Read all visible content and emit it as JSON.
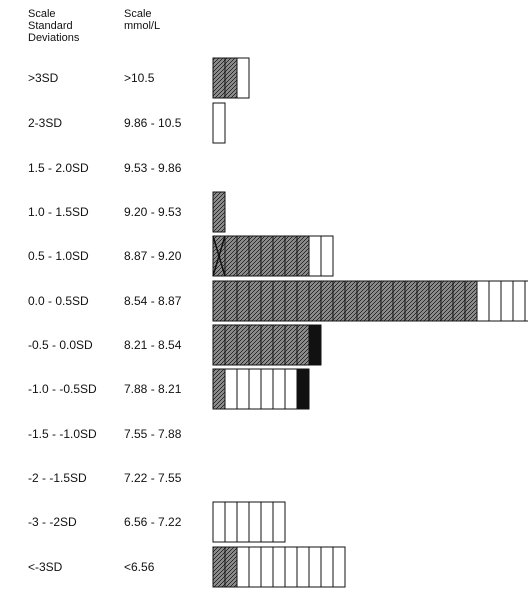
{
  "headers": {
    "sd": "Scale\nStandard\nDeviations",
    "mmol": "Scale\nmmol/L"
  },
  "chart_data": {
    "type": "bar",
    "orientation": "horizontal",
    "row_labels_sd": [
      ">3SD",
      "2-3SD",
      "1.5 - 2.0SD",
      "1.0 - 1.5SD",
      "0.5 - 1.0SD",
      "0.0 - 0.5SD",
      "-0.5 - 0.0SD",
      "-1.0 - -0.5SD",
      "-1.5 - -1.0SD",
      "-2 - -1.5SD",
      "-3 - -2SD",
      "<-3SD"
    ],
    "row_labels_mmol": [
      ">10.5",
      "9.86 - 10.5",
      "9.53 - 9.86",
      "9.20 - 9.53",
      "8.87 - 9.20",
      "8.54 - 8.87",
      "8.21 - 8.54",
      "7.88 - 8.21",
      "7.55 - 7.88",
      "7.22 - 7.55",
      "6.56 - 7.22",
      "<6.56"
    ],
    "counts": [
      3,
      1,
      0,
      1,
      10,
      27,
      9,
      8,
      0,
      0,
      6,
      11
    ],
    "cells": [
      [
        "shaded",
        "shaded",
        "empty"
      ],
      [
        "empty"
      ],
      [],
      [
        "shaded"
      ],
      [
        "x",
        "shaded",
        "shaded",
        "shaded",
        "shaded",
        "shaded",
        "shaded",
        "shaded",
        "empty",
        "empty"
      ],
      [
        "shaded",
        "shaded",
        "shaded",
        "shaded",
        "shaded",
        "shaded",
        "shaded",
        "shaded",
        "shaded",
        "shaded",
        "shaded",
        "shaded",
        "shaded",
        "shaded",
        "shaded",
        "shaded",
        "shaded",
        "shaded",
        "shaded",
        "shaded",
        "shaded",
        "shaded",
        "empty",
        "empty",
        "empty",
        "empty",
        "empty"
      ],
      [
        "shaded",
        "shaded",
        "shaded",
        "shaded",
        "shaded",
        "shaded",
        "shaded",
        "shaded",
        "black"
      ],
      [
        "shaded",
        "empty",
        "empty",
        "empty",
        "empty",
        "empty",
        "empty",
        "black"
      ],
      [],
      [],
      [
        "empty",
        "empty",
        "empty",
        "empty",
        "empty",
        "empty"
      ],
      [
        "shaded",
        "shaded",
        "empty",
        "empty",
        "empty",
        "empty",
        "empty",
        "empty",
        "empty",
        "empty",
        "empty"
      ]
    ],
    "colors": {
      "shaded": "#8a8a8a",
      "black": "#111111",
      "empty": "#ffffff",
      "stroke": "#111111"
    }
  }
}
